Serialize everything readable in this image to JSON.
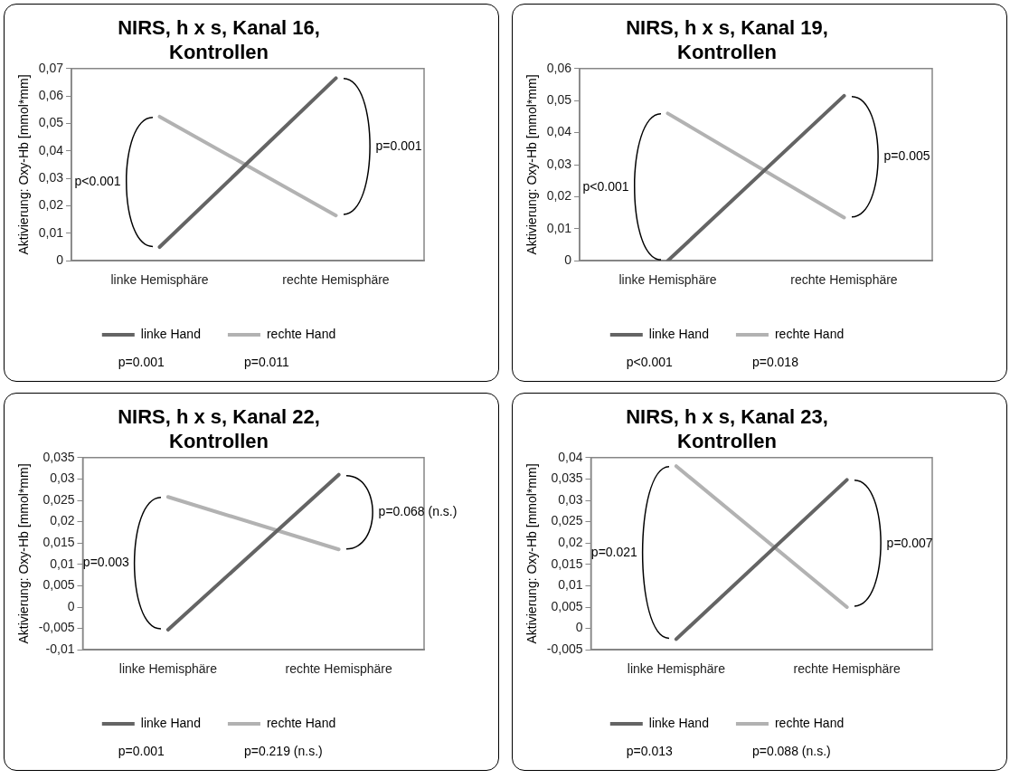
{
  "chart_data": [
    {
      "type": "line",
      "title": "NIRS, h x s, Kanal 16, Kontrollen",
      "ylabel": "Aktivierung: Oxy-Hb [mmol*mm]",
      "categories": [
        "linke Hemisphäre",
        "rechte Hemisphäre"
      ],
      "series": [
        {
          "name": "linke Hand",
          "color": "#646464",
          "values": [
            0.005,
            0.0665
          ]
        },
        {
          "name": "rechte Hand",
          "color": "#b2b2b2",
          "values": [
            0.0525,
            0.0165
          ]
        }
      ],
      "ylim": [
        0,
        0.07
      ],
      "yticks": [
        {
          "value": 0,
          "label": "0"
        },
        {
          "value": 0.01,
          "label": "0,01"
        },
        {
          "value": 0.02,
          "label": "0,02"
        },
        {
          "value": 0.03,
          "label": "0,03"
        },
        {
          "value": 0.04,
          "label": "0,04"
        },
        {
          "value": 0.05,
          "label": "0,05"
        },
        {
          "value": 0.06,
          "label": "0,06"
        },
        {
          "value": 0.07,
          "label": "0,07"
        }
      ],
      "legend": "bottom",
      "marker": "none",
      "annotations": [
        "p<0.001",
        "p=0.001",
        "p=0.001",
        "p=0.011"
      ]
    },
    {
      "type": "line",
      "title": "NIRS, h x s, Kanal 19, Kontrollen",
      "ylabel": "Aktivierung: Oxy-Hb [mmol*mm]",
      "categories": [
        "linke Hemisphäre",
        "rechte Hemisphäre"
      ],
      "series": [
        {
          "name": "linke Hand",
          "color": "#646464",
          "values": [
            0.0,
            0.0515
          ]
        },
        {
          "name": "rechte Hand",
          "color": "#b2b2b2",
          "values": [
            0.046,
            0.0135
          ]
        }
      ],
      "ylim": [
        0,
        0.06
      ],
      "yticks": [
        {
          "value": 0,
          "label": "0"
        },
        {
          "value": 0.01,
          "label": "0,01"
        },
        {
          "value": 0.02,
          "label": "0,02"
        },
        {
          "value": 0.03,
          "label": "0,03"
        },
        {
          "value": 0.04,
          "label": "0,04"
        },
        {
          "value": 0.05,
          "label": "0,05"
        },
        {
          "value": 0.06,
          "label": "0,06"
        }
      ],
      "legend": "bottom",
      "marker": "none",
      "annotations": [
        "p<0.001",
        "p=0.005",
        "p<0.001",
        "p=0.018"
      ]
    },
    {
      "type": "line",
      "title": "NIRS, h x s, Kanal 22, Kontrollen",
      "ylabel": "Aktivierung: Oxy-Hb [mmol*mm]",
      "categories": [
        "linke Hemisphäre",
        "rechte Hemisphäre"
      ],
      "series": [
        {
          "name": "linke Hand",
          "color": "#646464",
          "values": [
            -0.0053,
            0.031
          ]
        },
        {
          "name": "rechte Hand",
          "color": "#b2b2b2",
          "values": [
            0.0258,
            0.0135
          ]
        }
      ],
      "ylim": [
        -0.01,
        0.035
      ],
      "yticks": [
        {
          "value": -0.01,
          "label": "-0,01"
        },
        {
          "value": -0.005,
          "label": "-0,005"
        },
        {
          "value": 0,
          "label": "0"
        },
        {
          "value": 0.005,
          "label": "0,005"
        },
        {
          "value": 0.01,
          "label": "0,01"
        },
        {
          "value": 0.015,
          "label": "0,015"
        },
        {
          "value": 0.02,
          "label": "0,02"
        },
        {
          "value": 0.025,
          "label": "0,025"
        },
        {
          "value": 0.03,
          "label": "0,03"
        },
        {
          "value": 0.035,
          "label": "0,035"
        }
      ],
      "legend": "bottom",
      "marker": "none",
      "annotations": [
        "p=0.003",
        "p=0.068 (n.s.)",
        "p=0.001",
        "p=0.219 (n.s.)"
      ]
    },
    {
      "type": "line",
      "title": "NIRS, h x s, Kanal 23, Kontrollen",
      "ylabel": "Aktivierung: Oxy-Hb [mmol*mm]",
      "categories": [
        "linke Hemisphäre",
        "rechte Hemisphäre"
      ],
      "series": [
        {
          "name": "linke Hand",
          "color": "#646464",
          "values": [
            -0.0025,
            0.0348
          ]
        },
        {
          "name": "rechte Hand",
          "color": "#b2b2b2",
          "values": [
            0.038,
            0.005
          ]
        }
      ],
      "ylim": [
        -0.005,
        0.04
      ],
      "yticks": [
        {
          "value": -0.005,
          "label": "-0,005"
        },
        {
          "value": 0,
          "label": "0"
        },
        {
          "value": 0.005,
          "label": "0,005"
        },
        {
          "value": 0.01,
          "label": "0,01"
        },
        {
          "value": 0.015,
          "label": "0,015"
        },
        {
          "value": 0.02,
          "label": "0,02"
        },
        {
          "value": 0.025,
          "label": "0,025"
        },
        {
          "value": 0.03,
          "label": "0,03"
        },
        {
          "value": 0.035,
          "label": "0,035"
        },
        {
          "value": 0.04,
          "label": "0,04"
        }
      ],
      "legend": "bottom",
      "marker": "none",
      "annotations": [
        "p=0.021",
        "p=0.007",
        "p=0.013",
        "p=0.088 (n.s.)"
      ]
    }
  ]
}
